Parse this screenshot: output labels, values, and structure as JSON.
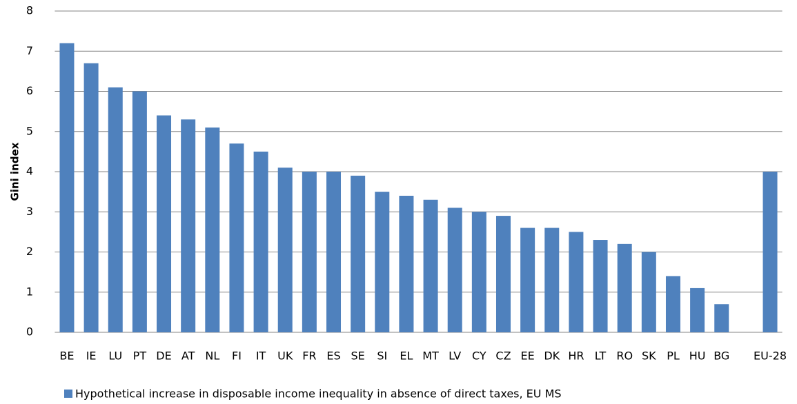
{
  "chart_data": {
    "type": "bar",
    "y_label": "Gini index",
    "categories": [
      "BE",
      "IE",
      "LU",
      "PT",
      "DE",
      "AT",
      "NL",
      "FI",
      "IT",
      "UK",
      "FR",
      "ES",
      "SE",
      "SI",
      "EL",
      "MT",
      "LV",
      "CY",
      "CZ",
      "EE",
      "DK",
      "HR",
      "LT",
      "RO",
      "SK",
      "PL",
      "HU",
      "BG",
      null,
      "EU-28"
    ],
    "series": [
      {
        "name": "Hypothetical increase in disposable income inequality in absence of direct taxes, EU MS",
        "color": "#4f81bd",
        "values": [
          7.2,
          6.7,
          6.1,
          6.0,
          5.4,
          5.3,
          5.1,
          4.7,
          4.5,
          4.1,
          4.0,
          4.0,
          3.9,
          3.5,
          3.4,
          3.3,
          3.1,
          3.0,
          2.9,
          2.6,
          2.6,
          2.5,
          2.3,
          2.2,
          2.0,
          1.4,
          1.1,
          0.7,
          null,
          4.0
        ]
      }
    ],
    "ylim": [
      0,
      8
    ],
    "yticks": [
      0,
      1,
      2,
      3,
      4,
      5,
      6,
      7,
      8
    ],
    "grid": true,
    "legend": "bottom"
  }
}
